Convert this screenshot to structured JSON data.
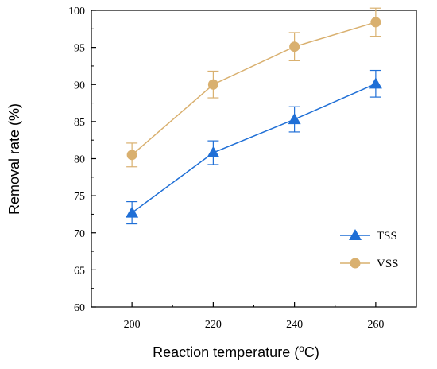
{
  "chart_data": {
    "type": "line",
    "title": "",
    "xlabel_main": "Reaction temperature (",
    "xlabel_sup": "o",
    "xlabel_tail": "C)",
    "ylabel": "Removal rate (%)",
    "x": [
      200,
      220,
      240,
      260
    ],
    "xlim": [
      190,
      270
    ],
    "ylim": [
      60,
      100
    ],
    "xticks": [
      "200",
      "220",
      "240",
      "260"
    ],
    "yticks": [
      "60",
      "65",
      "70",
      "75",
      "80",
      "85",
      "90",
      "95",
      "100"
    ],
    "grid": false,
    "legend_position": "bottom-right",
    "series": [
      {
        "name": "TSS",
        "color": "#1f6fd6",
        "marker": "triangle",
        "values": [
          72.7,
          80.8,
          85.3,
          90.1
        ],
        "error": [
          1.5,
          1.6,
          1.7,
          1.8
        ]
      },
      {
        "name": "VSS",
        "color": "#d9b06f",
        "marker": "circle",
        "values": [
          80.5,
          90.0,
          95.1,
          98.4
        ],
        "error": [
          1.6,
          1.8,
          1.9,
          1.9
        ]
      }
    ]
  }
}
